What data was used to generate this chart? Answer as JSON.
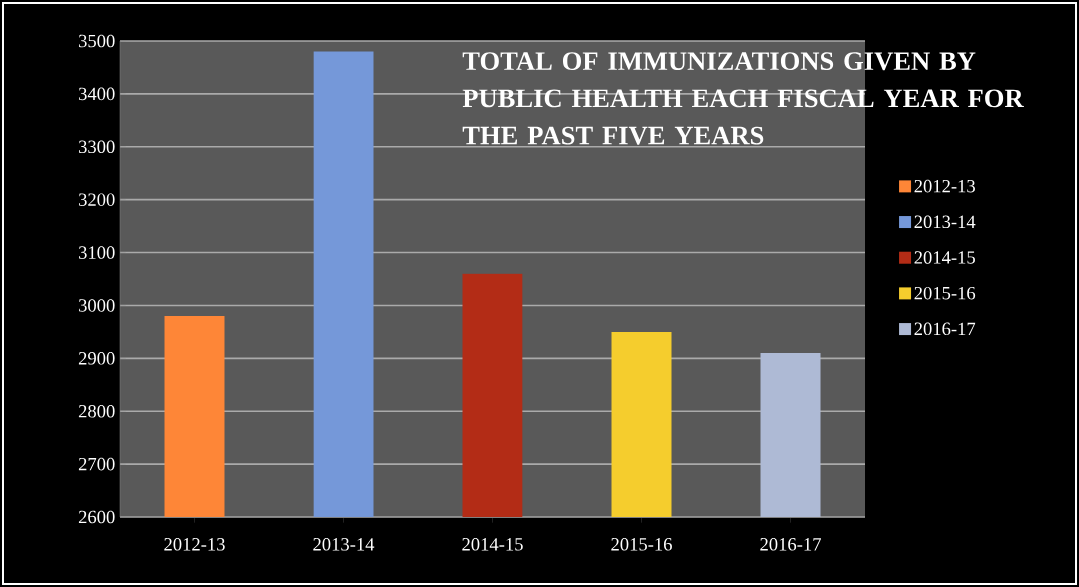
{
  "chart_data": {
    "type": "bar",
    "title": "TOTAL OF IMMUNIZATIONS GIVEN BY PUBLIC HEALTH EACH FISCAL YEAR FOR THE PAST FIVE YEARS",
    "categories": [
      "2012-13",
      "2013-14",
      "2014-15",
      "2015-16",
      "2016-17"
    ],
    "series": [
      {
        "name": "2012-13",
        "color": "#fe8637",
        "values": [
          2980,
          null,
          null,
          null,
          null
        ]
      },
      {
        "name": "2013-14",
        "color": "#7598d9",
        "values": [
          null,
          3480,
          null,
          null,
          null
        ]
      },
      {
        "name": "2014-15",
        "color": "#b32c16",
        "values": [
          null,
          null,
          3060,
          null,
          null
        ]
      },
      {
        "name": "2015-16",
        "color": "#f5cd2d",
        "values": [
          null,
          null,
          null,
          2950,
          null
        ]
      },
      {
        "name": "2016-17",
        "color": "#aebad5",
        "values": [
          null,
          null,
          null,
          null,
          2910
        ]
      }
    ],
    "ylim": [
      2600,
      3500
    ],
    "yticks": [
      2600,
      2700,
      2800,
      2900,
      3000,
      3100,
      3200,
      3300,
      3400,
      3500
    ],
    "grid": "y",
    "legend": "right"
  }
}
